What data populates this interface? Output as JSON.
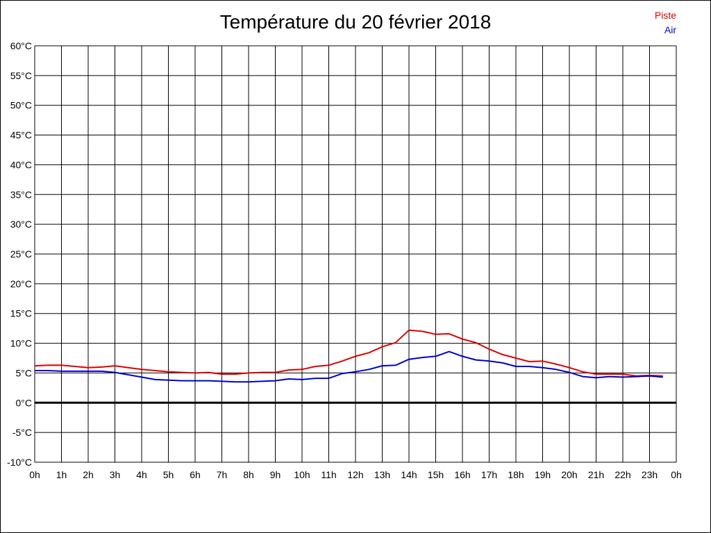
{
  "chart_data": {
    "type": "line",
    "title": "Température du 20 février 2018",
    "xlabel": "",
    "ylabel": "",
    "ylim": [
      -10,
      60
    ],
    "xlim": [
      0,
      24
    ],
    "y_ticks": [
      "60°C",
      "55°C",
      "50°C",
      "45°C",
      "40°C",
      "35°C",
      "30°C",
      "25°C",
      "20°C",
      "15°C",
      "10°C",
      "5°C",
      "0°C",
      "-5°C",
      "-10°C"
    ],
    "x_ticks": [
      "0h",
      "1h",
      "2h",
      "3h",
      "4h",
      "5h",
      "6h",
      "7h",
      "8h",
      "9h",
      "10h",
      "11h",
      "12h",
      "13h",
      "14h",
      "15h",
      "16h",
      "17h",
      "18h",
      "19h",
      "20h",
      "21h",
      "22h",
      "23h",
      "0h"
    ],
    "grid": true,
    "legend_position": "top-right",
    "series": [
      {
        "name": "Piste",
        "color": "#dd0000",
        "x": [
          0,
          0.5,
          1,
          1.5,
          2,
          2.5,
          3,
          3.5,
          4,
          4.5,
          5,
          5.5,
          6,
          6.5,
          7,
          7.5,
          8,
          8.5,
          9,
          9.5,
          10,
          10.5,
          11,
          11.5,
          12,
          12.5,
          13,
          13.5,
          14,
          14.5,
          15,
          15.5,
          16,
          16.5,
          17,
          17.5,
          18,
          18.5,
          19,
          19.5,
          20,
          20.5,
          21,
          21.5,
          22,
          22.5,
          23,
          23.5
        ],
        "values": [
          6.2,
          6.3,
          6.3,
          6.1,
          5.9,
          6.0,
          6.2,
          5.9,
          5.6,
          5.4,
          5.2,
          5.1,
          5.0,
          5.1,
          4.8,
          4.8,
          5.0,
          5.1,
          5.1,
          5.5,
          5.6,
          6.1,
          6.3,
          7.0,
          7.8,
          8.4,
          9.4,
          10.1,
          12.2,
          12.0,
          11.5,
          11.6,
          10.7,
          10.1,
          9.0,
          8.1,
          7.5,
          6.9,
          7.0,
          6.5,
          5.9,
          5.2,
          4.8,
          4.8,
          4.8,
          4.5,
          4.6,
          4.5
        ]
      },
      {
        "name": "Air",
        "color": "#0000cc",
        "x": [
          0,
          0.5,
          1,
          1.5,
          2,
          2.5,
          3,
          3.5,
          4,
          4.5,
          5,
          5.5,
          6,
          6.5,
          7,
          7.5,
          8,
          8.5,
          9,
          9.5,
          10,
          10.5,
          11,
          11.5,
          12,
          12.5,
          13,
          13.5,
          14,
          14.5,
          15,
          15.5,
          16,
          16.5,
          17,
          17.5,
          18,
          18.5,
          19,
          19.5,
          20,
          20.5,
          21,
          21.5,
          22,
          22.5,
          23,
          23.5
        ],
        "values": [
          5.4,
          5.4,
          5.3,
          5.3,
          5.3,
          5.3,
          5.1,
          4.7,
          4.3,
          3.9,
          3.8,
          3.7,
          3.7,
          3.7,
          3.6,
          3.5,
          3.5,
          3.6,
          3.7,
          4.0,
          3.9,
          4.1,
          4.1,
          4.9,
          5.2,
          5.6,
          6.2,
          6.3,
          7.3,
          7.6,
          7.8,
          8.6,
          7.8,
          7.2,
          7.0,
          6.7,
          6.1,
          6.1,
          5.9,
          5.6,
          5.1,
          4.4,
          4.2,
          4.4,
          4.3,
          4.4,
          4.5,
          4.3
        ]
      }
    ]
  }
}
